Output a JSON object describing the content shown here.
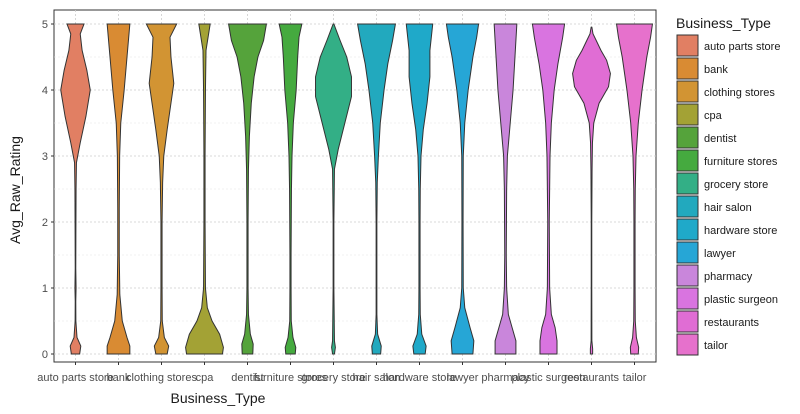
{
  "chart_data": {
    "type": "violin",
    "xlabel": "Business_Type",
    "ylabel": "Avg_Raw_Rating",
    "ylim": [
      0,
      5
    ],
    "yticks": [
      0,
      1,
      2,
      3,
      4,
      5
    ],
    "grid": true,
    "legend": {
      "title": "Business_Type",
      "placement": "right"
    },
    "categories": [
      {
        "name": "auto parts store",
        "color": "#E17F63",
        "profile": [
          [
            0,
            0.22
          ],
          [
            0.12,
            0.28
          ],
          [
            0.25,
            0.08
          ],
          [
            0.5,
            0.02
          ],
          [
            0.8,
            0.015
          ],
          [
            1.0,
            0.03
          ],
          [
            1.3,
            0.015
          ],
          [
            1.8,
            0.02
          ],
          [
            2.5,
            0.03
          ],
          [
            2.9,
            0.05
          ],
          [
            3.2,
            0.25
          ],
          [
            3.6,
            0.55
          ],
          [
            4.0,
            0.78
          ],
          [
            4.3,
            0.6
          ],
          [
            4.6,
            0.35
          ],
          [
            4.85,
            0.25
          ],
          [
            5.0,
            0.45
          ]
        ]
      },
      {
        "name": "bank",
        "color": "#D98B33",
        "profile": [
          [
            0,
            0.6
          ],
          [
            0.12,
            0.6
          ],
          [
            0.25,
            0.45
          ],
          [
            0.5,
            0.2
          ],
          [
            0.9,
            0.07
          ],
          [
            1.5,
            0.04
          ],
          [
            2.2,
            0.04
          ],
          [
            3.0,
            0.06
          ],
          [
            3.5,
            0.12
          ],
          [
            4.0,
            0.3
          ],
          [
            4.5,
            0.45
          ],
          [
            5.0,
            0.6
          ]
        ]
      },
      {
        "name": "clothing stores",
        "color": "#D29433",
        "profile": [
          [
            0,
            0.3
          ],
          [
            0.12,
            0.38
          ],
          [
            0.25,
            0.15
          ],
          [
            0.5,
            0.04
          ],
          [
            1.0,
            0.03
          ],
          [
            2.0,
            0.03
          ],
          [
            2.6,
            0.06
          ],
          [
            3.0,
            0.12
          ],
          [
            3.4,
            0.3
          ],
          [
            3.8,
            0.5
          ],
          [
            4.1,
            0.65
          ],
          [
            4.5,
            0.5
          ],
          [
            4.8,
            0.45
          ],
          [
            5.0,
            0.8
          ]
        ]
      },
      {
        "name": "cpa",
        "color": "#A3A235",
        "profile": [
          [
            0,
            0.95
          ],
          [
            0.1,
            1.0
          ],
          [
            0.3,
            0.8
          ],
          [
            0.5,
            0.4
          ],
          [
            0.7,
            0.15
          ],
          [
            1.0,
            0.05
          ],
          [
            2.0,
            0.03
          ],
          [
            3.0,
            0.03
          ],
          [
            4.0,
            0.05
          ],
          [
            4.6,
            0.08
          ],
          [
            5.0,
            0.3
          ]
        ]
      },
      {
        "name": "dentist",
        "color": "#55A33B",
        "profile": [
          [
            0,
            0.28
          ],
          [
            0.15,
            0.3
          ],
          [
            0.3,
            0.15
          ],
          [
            0.6,
            0.05
          ],
          [
            1.0,
            0.03
          ],
          [
            2.0,
            0.03
          ],
          [
            2.8,
            0.05
          ],
          [
            3.3,
            0.1
          ],
          [
            3.8,
            0.2
          ],
          [
            4.2,
            0.35
          ],
          [
            4.5,
            0.55
          ],
          [
            4.75,
            0.85
          ],
          [
            5.0,
            1.0
          ]
        ]
      },
      {
        "name": "furniture stores",
        "color": "#45AA3F",
        "profile": [
          [
            0,
            0.25
          ],
          [
            0.1,
            0.28
          ],
          [
            0.25,
            0.13
          ],
          [
            0.5,
            0.04
          ],
          [
            1.0,
            0.03
          ],
          [
            1.5,
            0.03
          ],
          [
            2.0,
            0.04
          ],
          [
            2.5,
            0.05
          ],
          [
            3.0,
            0.08
          ],
          [
            3.5,
            0.15
          ],
          [
            4.0,
            0.3
          ],
          [
            4.5,
            0.38
          ],
          [
            4.8,
            0.45
          ],
          [
            5.0,
            0.6
          ]
        ]
      },
      {
        "name": "grocery store",
        "color": "#33AF86",
        "profile": [
          [
            0,
            0.05
          ],
          [
            0.1,
            0.1
          ],
          [
            0.2,
            0.05
          ],
          [
            1.0,
            0.02
          ],
          [
            2.0,
            0.02
          ],
          [
            2.8,
            0.05
          ],
          [
            3.1,
            0.25
          ],
          [
            3.5,
            0.6
          ],
          [
            3.9,
            0.95
          ],
          [
            4.2,
            0.95
          ],
          [
            4.5,
            0.7
          ],
          [
            4.75,
            0.35
          ],
          [
            4.9,
            0.15
          ],
          [
            5.0,
            0.02
          ]
        ]
      },
      {
        "name": "hair salon",
        "color": "#22A9BE",
        "profile": [
          [
            0,
            0.22
          ],
          [
            0.12,
            0.25
          ],
          [
            0.3,
            0.06
          ],
          [
            0.6,
            0.02
          ],
          [
            1.0,
            0.02
          ],
          [
            2.0,
            0.02
          ],
          [
            2.6,
            0.04
          ],
          [
            3.0,
            0.1
          ],
          [
            3.5,
            0.2
          ],
          [
            4.0,
            0.4
          ],
          [
            4.4,
            0.6
          ],
          [
            4.75,
            0.85
          ],
          [
            5.0,
            1.0
          ]
        ]
      },
      {
        "name": "hardware store",
        "color": "#1FA9C9",
        "profile": [
          [
            0,
            0.3
          ],
          [
            0.12,
            0.35
          ],
          [
            0.3,
            0.12
          ],
          [
            0.6,
            0.04
          ],
          [
            1.0,
            0.03
          ],
          [
            2.0,
            0.03
          ],
          [
            2.5,
            0.04
          ],
          [
            3.0,
            0.08
          ],
          [
            3.4,
            0.2
          ],
          [
            3.8,
            0.4
          ],
          [
            4.2,
            0.55
          ],
          [
            4.6,
            0.55
          ],
          [
            5.0,
            0.7
          ]
        ]
      },
      {
        "name": "lawyer",
        "color": "#26A6D6",
        "profile": [
          [
            0,
            0.55
          ],
          [
            0.2,
            0.6
          ],
          [
            0.4,
            0.4
          ],
          [
            0.7,
            0.12
          ],
          [
            1.0,
            0.04
          ],
          [
            2.0,
            0.03
          ],
          [
            3.0,
            0.04
          ],
          [
            3.5,
            0.12
          ],
          [
            4.0,
            0.3
          ],
          [
            4.5,
            0.55
          ],
          [
            4.8,
            0.75
          ],
          [
            5.0,
            0.85
          ]
        ]
      },
      {
        "name": "pharmacy",
        "color": "#C986DB",
        "profile": [
          [
            0,
            0.55
          ],
          [
            0.2,
            0.55
          ],
          [
            0.4,
            0.35
          ],
          [
            0.6,
            0.15
          ],
          [
            1.0,
            0.06
          ],
          [
            1.5,
            0.04
          ],
          [
            2.0,
            0.05
          ],
          [
            2.5,
            0.06
          ],
          [
            3.0,
            0.1
          ],
          [
            3.5,
            0.25
          ],
          [
            4.0,
            0.4
          ],
          [
            4.5,
            0.5
          ],
          [
            5.0,
            0.6
          ]
        ]
      },
      {
        "name": "plastic surgeon",
        "color": "#D974E0",
        "profile": [
          [
            0,
            0.45
          ],
          [
            0.2,
            0.45
          ],
          [
            0.4,
            0.35
          ],
          [
            0.6,
            0.15
          ],
          [
            1.0,
            0.06
          ],
          [
            2.0,
            0.04
          ],
          [
            3.0,
            0.08
          ],
          [
            3.5,
            0.15
          ],
          [
            4.0,
            0.3
          ],
          [
            4.4,
            0.5
          ],
          [
            4.8,
            0.75
          ],
          [
            5.0,
            0.85
          ]
        ]
      },
      {
        "name": "restaurants",
        "color": "#E06DD4",
        "profile": [
          [
            0,
            0.06
          ],
          [
            0.08,
            0.06
          ],
          [
            0.2,
            0.02
          ],
          [
            1.0,
            0.015
          ],
          [
            2.0,
            0.015
          ],
          [
            2.8,
            0.03
          ],
          [
            3.2,
            0.05
          ],
          [
            3.5,
            0.12
          ],
          [
            3.8,
            0.4
          ],
          [
            4.05,
            0.9
          ],
          [
            4.25,
            1.0
          ],
          [
            4.45,
            0.8
          ],
          [
            4.6,
            0.5
          ],
          [
            4.75,
            0.25
          ],
          [
            4.85,
            0.08
          ],
          [
            4.95,
            0.02
          ]
        ]
      },
      {
        "name": "tailor",
        "color": "#E671CC",
        "profile": [
          [
            0,
            0.2
          ],
          [
            0.1,
            0.22
          ],
          [
            0.25,
            0.1
          ],
          [
            0.5,
            0.04
          ],
          [
            1.0,
            0.03
          ],
          [
            2.0,
            0.03
          ],
          [
            2.5,
            0.04
          ],
          [
            3.0,
            0.08
          ],
          [
            3.5,
            0.2
          ],
          [
            4.0,
            0.4
          ],
          [
            4.5,
            0.65
          ],
          [
            4.8,
            0.85
          ],
          [
            5.0,
            0.95
          ]
        ]
      }
    ]
  }
}
